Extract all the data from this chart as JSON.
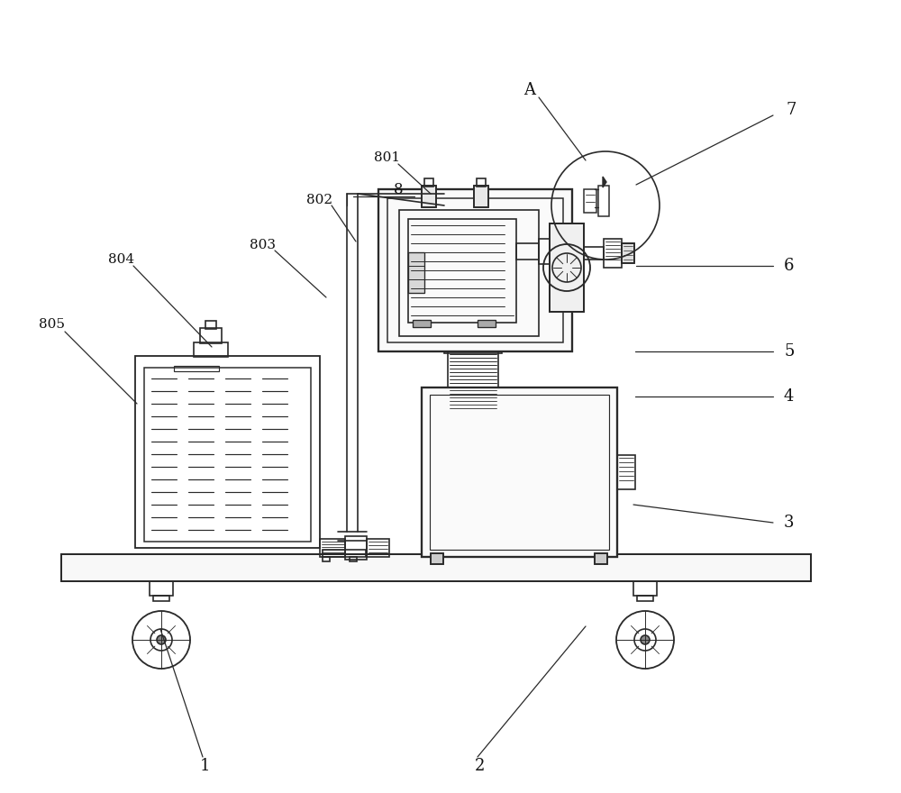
{
  "bg_color": "#ffffff",
  "lc": "#2a2a2a",
  "lw": 1.2,
  "figsize": [
    10.0,
    8.8
  ],
  "dpi": 100,
  "xlim": [
    0,
    1000
  ],
  "ylim": [
    0,
    880
  ]
}
